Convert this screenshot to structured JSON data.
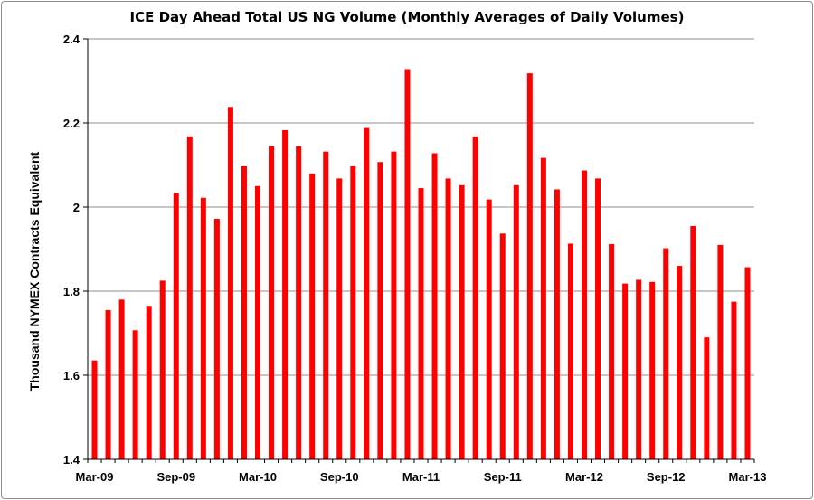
{
  "chart_data": {
    "type": "bar",
    "title": "ICE Day Ahead Total  US NG Volume (Monthly Averages of Daily Volumes)",
    "xlabel": "",
    "ylabel": "Thousand NYMEX Contracts Equivalent",
    "ylim": [
      1.4,
      2.4
    ],
    "y_ticks": [
      "1.4",
      "1.6",
      "1.8",
      "2",
      "2.2",
      "2.4"
    ],
    "x_tick_labels": [
      "Mar-09",
      "Sep-09",
      "Mar-10",
      "Sep-10",
      "Mar-11",
      "Sep-11",
      "Mar-12",
      "Sep-12",
      "Mar-13"
    ],
    "x_tick_every": 6,
    "bar_color": "#ff0000",
    "grid": "horizontal",
    "categories": [
      "Mar-09",
      "Apr-09",
      "May-09",
      "Jun-09",
      "Jul-09",
      "Aug-09",
      "Sep-09",
      "Oct-09",
      "Nov-09",
      "Dec-09",
      "Jan-10",
      "Feb-10",
      "Mar-10",
      "Apr-10",
      "May-10",
      "Jun-10",
      "Jul-10",
      "Aug-10",
      "Sep-10",
      "Oct-10",
      "Nov-10",
      "Dec-10",
      "Jan-11",
      "Feb-11",
      "Mar-11",
      "Apr-11",
      "May-11",
      "Jun-11",
      "Jul-11",
      "Aug-11",
      "Sep-11",
      "Oct-11",
      "Nov-11",
      "Dec-11",
      "Jan-12",
      "Feb-12",
      "Mar-12",
      "Apr-12",
      "May-12",
      "Jun-12",
      "Jul-12",
      "Aug-12",
      "Sep-12",
      "Oct-12",
      "Nov-12",
      "Dec-12",
      "Jan-13",
      "Feb-13",
      "Mar-13"
    ],
    "values": [
      1.635,
      1.755,
      1.78,
      1.707,
      1.765,
      1.825,
      2.033,
      2.168,
      2.022,
      1.972,
      2.238,
      2.097,
      2.05,
      2.145,
      2.183,
      2.145,
      2.08,
      2.132,
      2.068,
      2.097,
      2.188,
      2.107,
      2.132,
      2.328,
      2.045,
      2.128,
      2.068,
      2.052,
      2.168,
      2.018,
      1.937,
      2.052,
      2.318,
      2.117,
      2.042,
      1.913,
      2.087,
      2.068,
      1.912,
      1.818,
      1.827,
      1.822,
      1.902,
      1.86,
      1.955,
      1.69,
      1.91,
      1.775,
      1.857
    ]
  }
}
